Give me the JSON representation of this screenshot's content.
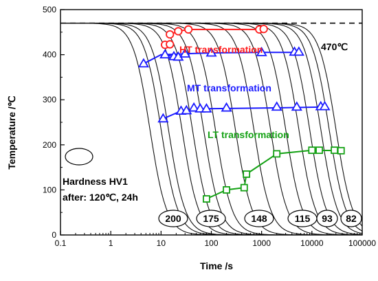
{
  "chart_data": {
    "type": "line",
    "x_scale": "log",
    "xlim": [
      0.1,
      100000
    ],
    "ylim": [
      0,
      500
    ],
    "xlabel": "Time /s",
    "ylabel": "Temperature /℃",
    "x_ticks": [
      {
        "v": 0.1,
        "label": "0.1"
      },
      {
        "v": 1,
        "label": "1"
      },
      {
        "v": 10,
        "label": "10"
      },
      {
        "v": 100,
        "label": "100"
      },
      {
        "v": 1000,
        "label": "1000"
      },
      {
        "v": 10000,
        "label": "10000"
      },
      {
        "v": 100000,
        "label": "100000"
      }
    ],
    "y_ticks": [
      {
        "v": 0,
        "label": "0"
      },
      {
        "v": 100,
        "label": "100"
      },
      {
        "v": 200,
        "label": "200"
      },
      {
        "v": 300,
        "label": "300"
      },
      {
        "v": 400,
        "label": "400"
      },
      {
        "v": 500,
        "label": "500"
      }
    ],
    "reference_line": {
      "y": 470,
      "label": "470℃",
      "style": "dashed"
    },
    "cooling_curves": [
      {
        "tmid": 6,
        "k": 2.6
      },
      {
        "tmid": 10,
        "k": 2.6
      },
      {
        "tmid": 14,
        "k": 2.6
      },
      {
        "tmid": 26,
        "k": 2.6
      },
      {
        "tmid": 42,
        "k": 2.6
      },
      {
        "tmid": 70,
        "k": 2.6
      },
      {
        "tmid": 120,
        "k": 2.6
      },
      {
        "tmid": 300,
        "k": 2.6
      },
      {
        "tmid": 700,
        "k": 2.6
      },
      {
        "tmid": 1500,
        "k": 2.6
      },
      {
        "tmid": 3000,
        "k": 2.6
      },
      {
        "tmid": 5500,
        "k": 2.6
      },
      {
        "tmid": 9000,
        "k": 2.6
      },
      {
        "tmid": 15000,
        "k": 2.6
      },
      {
        "tmid": 22000,
        "k": 2.6
      },
      {
        "tmid": 30000,
        "k": 2.6
      }
    ],
    "series": [
      {
        "name": "HT transformation",
        "color": "#ff1a1a",
        "marker": "circle",
        "lines": [
          [
            [
              15,
              445
            ],
            [
              22,
              452
            ],
            [
              35,
              456
            ],
            [
              1000,
              456
            ]
          ]
        ],
        "points": [
          [
            12,
            422
          ],
          [
            15,
            423
          ],
          [
            15,
            445
          ],
          [
            22,
            452
          ],
          [
            35,
            456
          ],
          [
            900,
            456
          ],
          [
            1100,
            457
          ]
        ]
      },
      {
        "name": "MT transformation",
        "color": "#1a1aff",
        "marker": "triangle",
        "lines": [
          [
            [
              4.5,
              380
            ],
            [
              10,
              400
            ],
            [
              30,
              402
            ],
            [
              100,
              404
            ],
            [
              1000,
              405
            ],
            [
              5000,
              405
            ]
          ],
          [
            [
              12,
              400
            ],
            [
              18,
              396
            ],
            [
              22,
              395
            ]
          ],
          [
            [
              11,
              258
            ],
            [
              25,
              275
            ],
            [
              80,
              280
            ],
            [
              2000,
              282
            ],
            [
              17000,
              284
            ]
          ]
        ],
        "points": [
          [
            4.5,
            380
          ],
          [
            12,
            400
          ],
          [
            18,
            396
          ],
          [
            22,
            395
          ],
          [
            30,
            402
          ],
          [
            100,
            404
          ],
          [
            1000,
            405
          ],
          [
            4500,
            406
          ],
          [
            5500,
            406
          ],
          [
            11,
            258
          ],
          [
            25,
            275
          ],
          [
            32,
            276
          ],
          [
            45,
            282
          ],
          [
            60,
            280
          ],
          [
            80,
            280
          ],
          [
            200,
            282
          ],
          [
            2000,
            284
          ],
          [
            5000,
            284
          ],
          [
            15000,
            285
          ],
          [
            18000,
            285
          ]
        ]
      },
      {
        "name": "LT transformation",
        "color": "#13a113",
        "marker": "square",
        "lines": [
          [
            [
              80,
              80
            ],
            [
              200,
              100
            ],
            [
              450,
              105
            ],
            [
              500,
              135
            ],
            [
              2000,
              180
            ],
            [
              10000,
              188
            ],
            [
              40000,
              187
            ]
          ]
        ],
        "points": [
          [
            80,
            80
          ],
          [
            200,
            100
          ],
          [
            450,
            105
          ],
          [
            500,
            135
          ],
          [
            2000,
            180
          ],
          [
            10000,
            188
          ],
          [
            14000,
            188
          ],
          [
            28000,
            188
          ],
          [
            38000,
            187
          ]
        ]
      }
    ],
    "annotations": [
      {
        "text": "HT transformation",
        "color": "#ff1a1a"
      },
      {
        "text": "MT transformation",
        "color": "#1a1aff"
      },
      {
        "text": "LT transformation",
        "color": "#13a113"
      }
    ],
    "hardness_title": "Hardness HV1",
    "hardness_sub": "after: 120℃, 24h",
    "hardness_values": [
      "200",
      "175",
      "148",
      "115",
      "93",
      "82"
    ]
  }
}
